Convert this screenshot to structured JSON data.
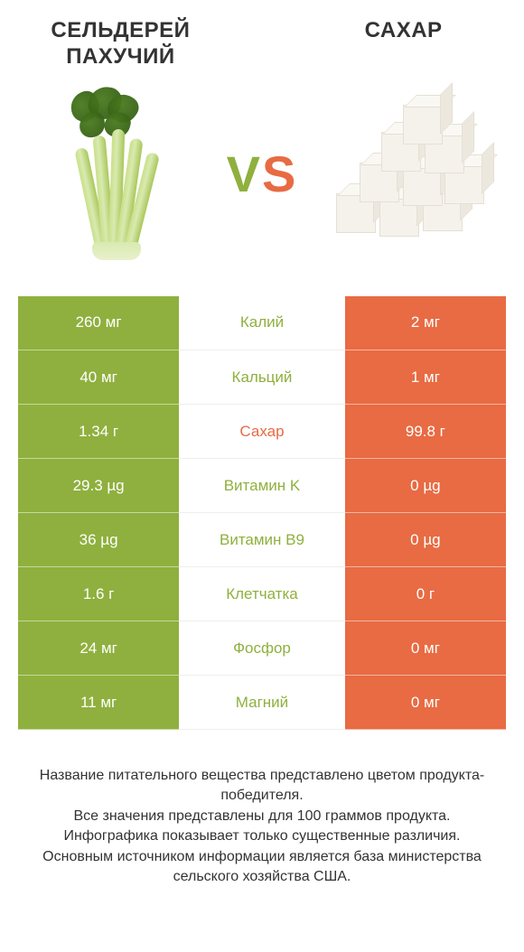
{
  "colors": {
    "left_bg": "#8fb03e",
    "right_bg": "#e86b43",
    "text": "#333333",
    "row_border": "#eeeeee"
  },
  "header": {
    "left_title": "СЕЛЬДЕРЕЙ ПАХУЧИЙ",
    "right_title": "САХАР",
    "vs_v": "V",
    "vs_s": "S"
  },
  "rows": [
    {
      "left": "260 мг",
      "name": "Калий",
      "right": "2 мг",
      "winner": "left"
    },
    {
      "left": "40 мг",
      "name": "Кальций",
      "right": "1 мг",
      "winner": "left"
    },
    {
      "left": "1.34 г",
      "name": "Сахар",
      "right": "99.8 г",
      "winner": "right"
    },
    {
      "left": "29.3 µg",
      "name": "Витамин K",
      "right": "0 µg",
      "winner": "left"
    },
    {
      "left": "36 µg",
      "name": "Витамин B9",
      "right": "0 µg",
      "winner": "left"
    },
    {
      "left": "1.6 г",
      "name": "Клетчатка",
      "right": "0 г",
      "winner": "left"
    },
    {
      "left": "24 мг",
      "name": "Фосфор",
      "right": "0 мг",
      "winner": "left"
    },
    {
      "left": "11 мг",
      "name": "Магний",
      "right": "0 мг",
      "winner": "left"
    }
  ],
  "footer": [
    "Название питательного вещества представлено цветом продукта-победителя.",
    "Все значения представлены для 100 граммов продукта.",
    "Инфографика показывает только существенные различия.",
    "Основным источником информации является база министерства сельского хозяйства США."
  ]
}
